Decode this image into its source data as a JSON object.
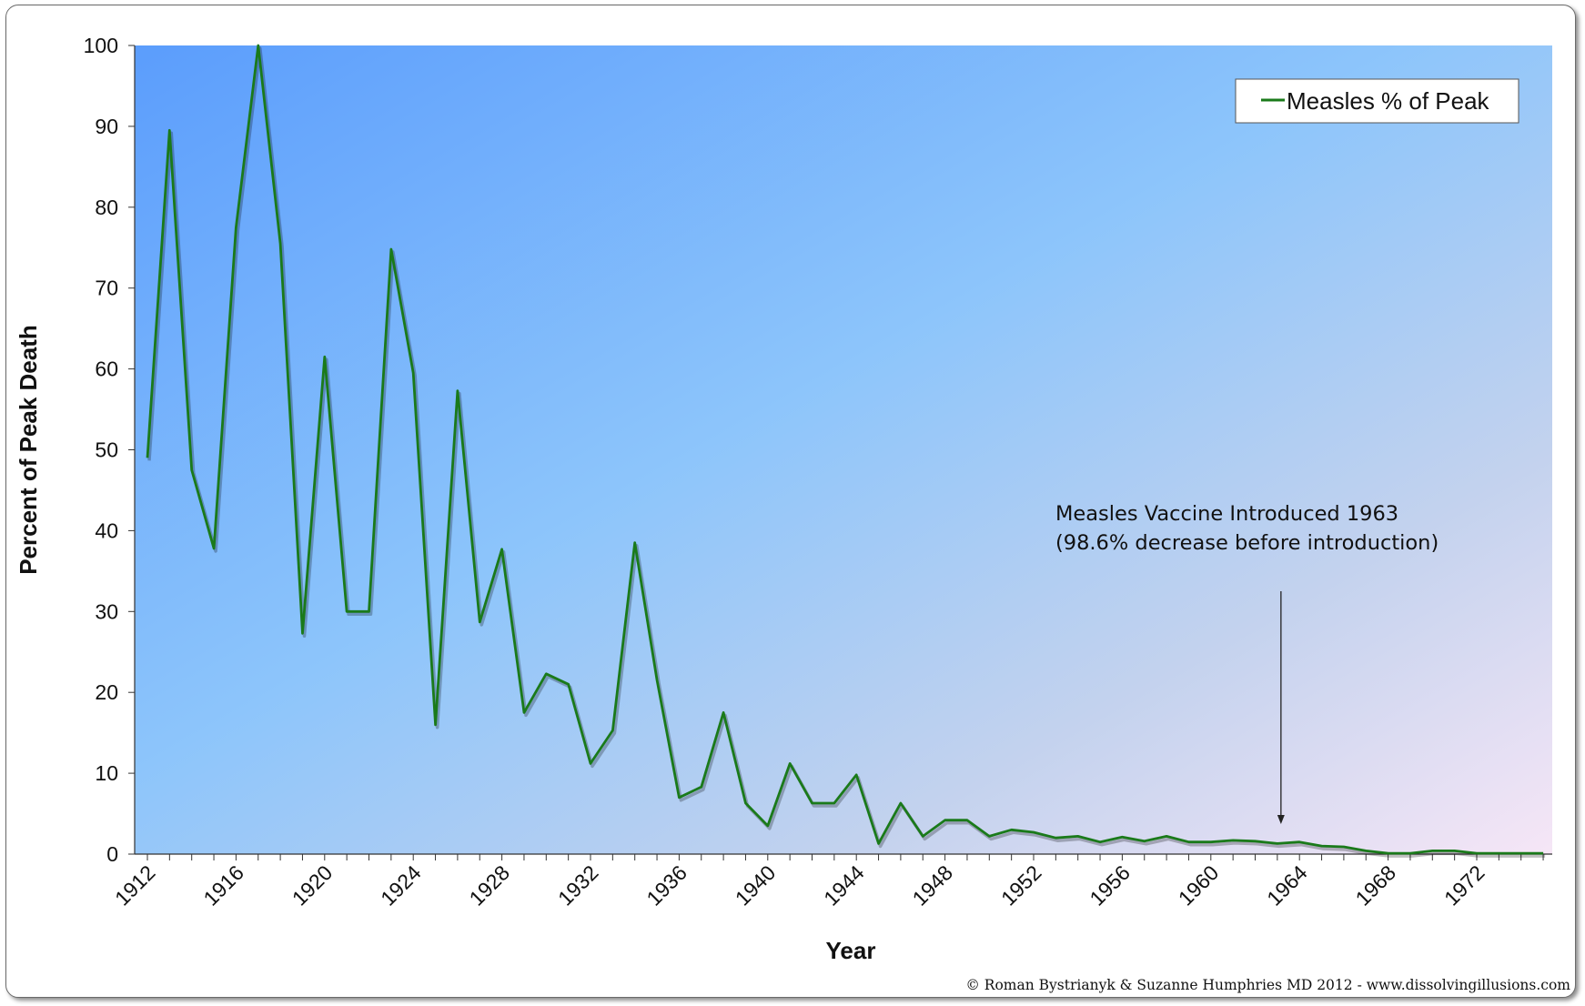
{
  "chart_data": {
    "type": "line",
    "title": "",
    "xlabel": "Year",
    "ylabel": "Percent of Peak Death",
    "ylim": [
      0,
      100
    ],
    "yticks": [
      0,
      10,
      20,
      30,
      40,
      50,
      60,
      70,
      80,
      90,
      100
    ],
    "xlim": [
      1912,
      1976
    ],
    "xtick_labels": [
      "1912",
      "1916",
      "1920",
      "1924",
      "1928",
      "1932",
      "1936",
      "1940",
      "1944",
      "1948",
      "1952",
      "1956",
      "1960",
      "1964",
      "1968",
      "1972"
    ],
    "grid": false,
    "legend_position": "top-right",
    "series": [
      {
        "name": "Measles % of Peak",
        "color": "#1a7a1a",
        "x": [
          1912,
          1913,
          1914,
          1915,
          1916,
          1917,
          1918,
          1919,
          1920,
          1921,
          1922,
          1923,
          1924,
          1925,
          1926,
          1927,
          1928,
          1929,
          1930,
          1931,
          1932,
          1933,
          1934,
          1935,
          1936,
          1937,
          1938,
          1939,
          1940,
          1941,
          1942,
          1943,
          1944,
          1945,
          1946,
          1947,
          1948,
          1949,
          1950,
          1951,
          1952,
          1953,
          1954,
          1955,
          1956,
          1957,
          1958,
          1959,
          1960,
          1961,
          1962,
          1963,
          1964,
          1965,
          1966,
          1967,
          1968,
          1969,
          1970,
          1971,
          1972,
          1973,
          1974,
          1975
        ],
        "values": [
          49,
          89.5,
          47.5,
          37.8,
          77.5,
          100,
          75.5,
          27.3,
          61.5,
          30,
          30,
          74.8,
          59.5,
          16,
          57.3,
          28.7,
          37.7,
          17.5,
          22.3,
          21,
          11.2,
          15.3,
          38.5,
          21.5,
          7,
          8.3,
          17.5,
          6.3,
          3.5,
          11.2,
          6.3,
          6.3,
          9.8,
          1.3,
          6.3,
          2.2,
          4.2,
          4.2,
          2.2,
          3,
          2.7,
          2,
          2.2,
          1.5,
          2.1,
          1.6,
          2.2,
          1.5,
          1.5,
          1.7,
          1.6,
          1.3,
          1.5,
          1,
          0.9,
          0.4,
          0.1,
          0.1,
          0.4,
          0.4,
          0.1,
          0.1,
          0.1,
          0.1
        ]
      }
    ],
    "annotations": [
      {
        "lines": [
          "Measles Vaccine Introduced 1963",
          "(98.6% decrease before introduction)"
        ],
        "arrow_x": 1963
      }
    ],
    "credit": "© Roman Bystrianyk & Suzanne Humphries MD 2012 - www.dissolvingillusions.com"
  }
}
